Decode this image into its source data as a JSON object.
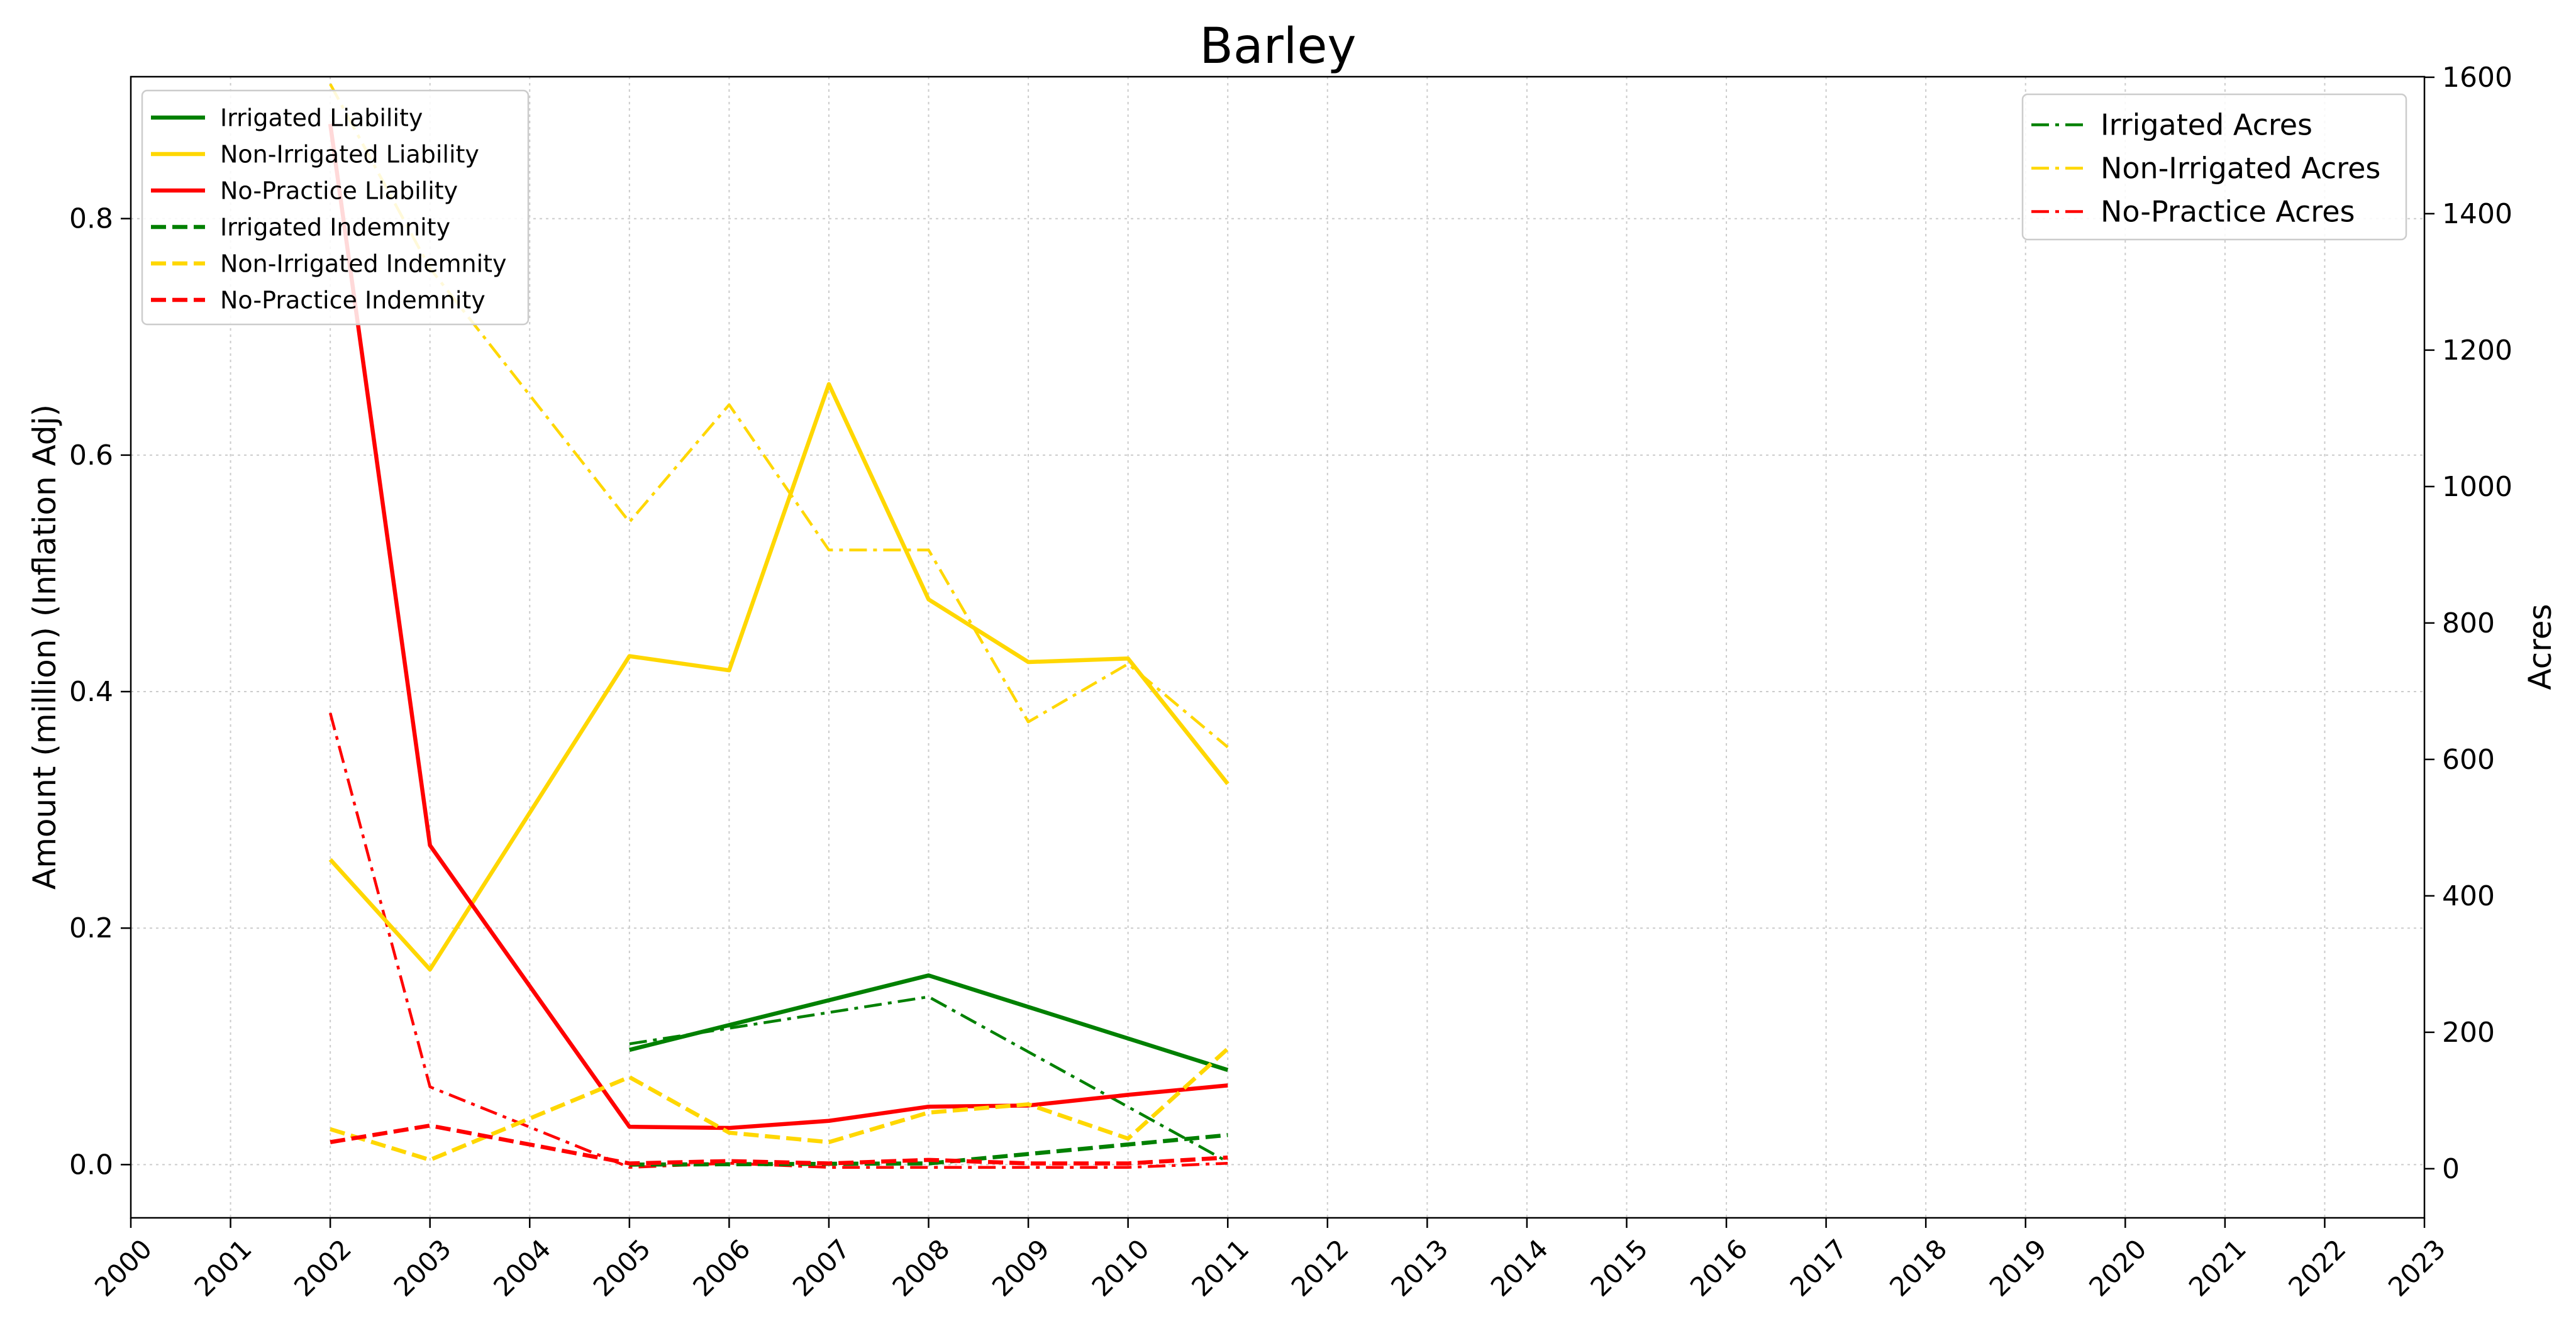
{
  "chart_data": {
    "type": "line",
    "title": "Barley",
    "xlabel": "",
    "ylabel": "Amount (million) (Inflation Adj)",
    "y2label": "Acres",
    "x_ticks": [
      "2000",
      "2001",
      "2002",
      "2003",
      "2004",
      "2005",
      "2006",
      "2007",
      "2008",
      "2009",
      "2010",
      "2011",
      "2012",
      "2013",
      "2014",
      "2015",
      "2016",
      "2017",
      "2018",
      "2019",
      "2020",
      "2021",
      "2022",
      "2023"
    ],
    "xlim": [
      2000,
      2023
    ],
    "ylim": [
      -0.045,
      0.92
    ],
    "y_ticks": [
      "0.0",
      "0.2",
      "0.4",
      "0.6",
      "0.8"
    ],
    "y2lim": [
      -72,
      1600.8
    ],
    "y2_ticks": [
      "0",
      "200",
      "400",
      "600",
      "800",
      "1000",
      "1200",
      "1400",
      "1600"
    ],
    "grid": true,
    "legend_left_placement": "upper-left",
    "legend_right_placement": "upper-right",
    "colors": {
      "irrigated": "#008000",
      "non_irrigated": "#ffd700",
      "no_practice": "#ff0000"
    },
    "series": [
      {
        "name": "Irrigated Liability",
        "axis": "left",
        "style": "solid",
        "color": "#008000",
        "x": [
          2005,
          2008,
          2011
        ],
        "values": [
          0.097,
          0.16,
          0.08
        ]
      },
      {
        "name": "Non-Irrigated Liability",
        "axis": "left",
        "style": "solid",
        "color": "#ffd700",
        "x": [
          2002,
          2003,
          2005,
          2006,
          2007,
          2008,
          2009,
          2010,
          2011
        ],
        "values": [
          0.258,
          0.165,
          0.43,
          0.418,
          0.66,
          0.478,
          0.425,
          0.428,
          0.322
        ]
      },
      {
        "name": "No-Practice Liability",
        "axis": "left",
        "style": "solid",
        "color": "#ff0000",
        "x": [
          2002,
          2003,
          2005,
          2006,
          2007,
          2008,
          2009,
          2010,
          2011
        ],
        "values": [
          0.88,
          0.27,
          0.032,
          0.031,
          0.037,
          0.049,
          0.05,
          0.059,
          0.067
        ]
      },
      {
        "name": "Irrigated Indemnity",
        "axis": "left",
        "style": "dashed",
        "color": "#008000",
        "x": [
          2005,
          2008,
          2011
        ],
        "values": [
          0.0,
          0.001,
          0.025
        ]
      },
      {
        "name": "Non-Irrigated Indemnity",
        "axis": "left",
        "style": "dashed",
        "color": "#ffd700",
        "x": [
          2002,
          2003,
          2005,
          2006,
          2007,
          2008,
          2009,
          2010,
          2011
        ],
        "values": [
          0.03,
          0.004,
          0.074,
          0.027,
          0.019,
          0.044,
          0.051,
          0.022,
          0.098
        ]
      },
      {
        "name": "No-Practice Indemnity",
        "axis": "left",
        "style": "dashed",
        "color": "#ff0000",
        "x": [
          2002,
          2003,
          2005,
          2006,
          2007,
          2008,
          2009,
          2010,
          2011
        ],
        "values": [
          0.019,
          0.033,
          0.001,
          0.003,
          0.001,
          0.004,
          0.001,
          0.001,
          0.006
        ]
      },
      {
        "name": "Irrigated Acres",
        "axis": "right",
        "style": "dashdot",
        "color": "#008000",
        "x": [
          2005,
          2008,
          2011
        ],
        "values": [
          183,
          252,
          10
        ]
      },
      {
        "name": "Non-Irrigated Acres",
        "axis": "right",
        "style": "dashdot",
        "color": "#ffd700",
        "x": [
          2002,
          2003,
          2005,
          2006,
          2007,
          2008,
          2009,
          2010,
          2011
        ],
        "values": [
          1590,
          1320,
          948,
          1120,
          907,
          907,
          655,
          740,
          618
        ]
      },
      {
        "name": "No-Practice Acres",
        "axis": "right",
        "style": "dashdot",
        "color": "#ff0000",
        "x": [
          2002,
          2003,
          2005,
          2006,
          2007,
          2008,
          2009,
          2010,
          2011
        ],
        "values": [
          668,
          120,
          2,
          8,
          2,
          2,
          2,
          2,
          8
        ]
      }
    ],
    "legend_left": [
      "Irrigated Liability",
      "Non-Irrigated Liability",
      "No-Practice Liability",
      "Irrigated Indemnity",
      "Non-Irrigated Indemnity",
      "No-Practice Indemnity"
    ],
    "legend_right": [
      "Irrigated Acres",
      "Non-Irrigated Acres",
      "No-Practice Acres"
    ]
  }
}
